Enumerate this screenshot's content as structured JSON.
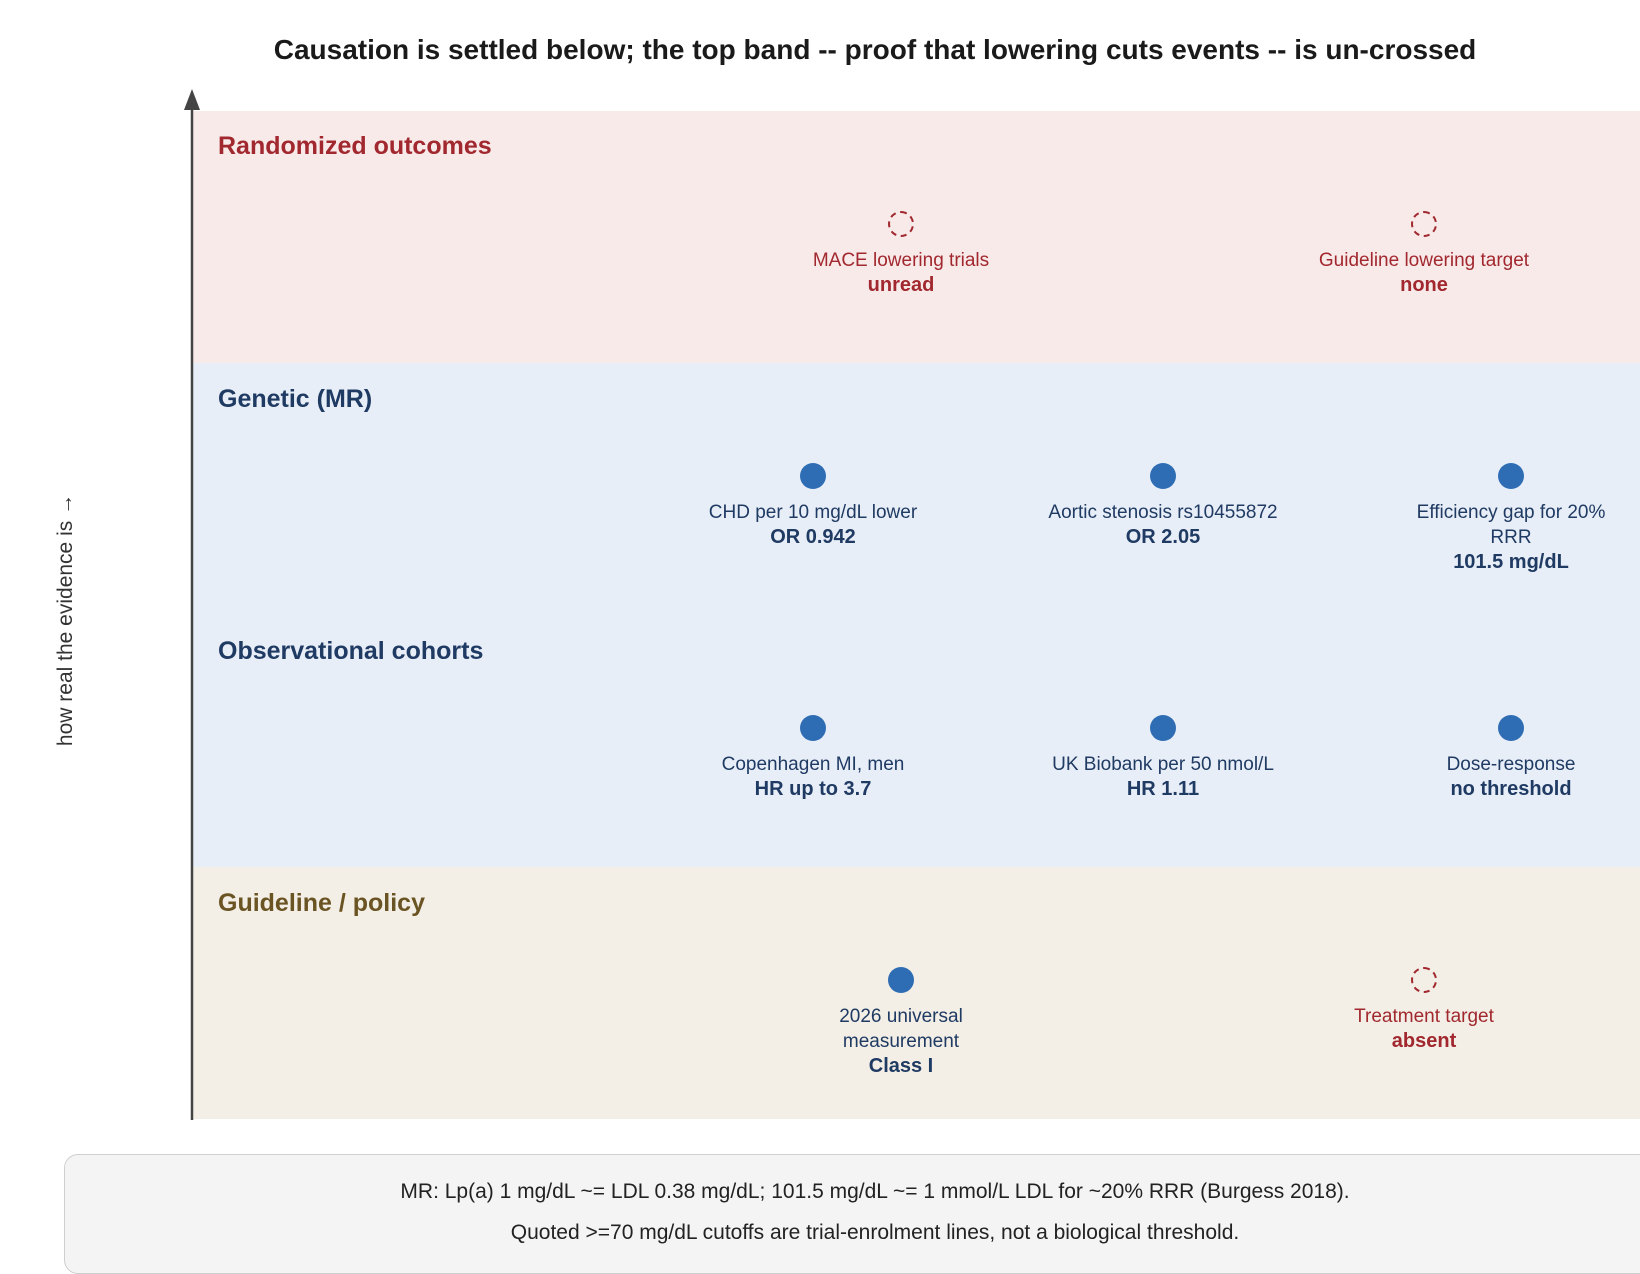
{
  "title": "Causation is settled below; the top band -- proof that lowering cuts events -- is un-crossed",
  "y_axis_label": "how real the evidence is →",
  "colors": {
    "randomized_band": "#f9eaea",
    "evidence_band": "#e8eef7",
    "guideline_band": "#f3efe6",
    "randomized_label": "#a1282e",
    "evidence_label": "#1f3a63",
    "guideline_label": "#6b5423",
    "established_dot": "#2e6db4",
    "missing_dot": "#a1282e"
  },
  "bands": [
    {
      "label": "Randomized outcomes"
    },
    {
      "label": "Genetic (MR)"
    },
    {
      "label": "Observational cohorts"
    },
    {
      "label": "Guideline / policy"
    }
  ],
  "nodes": {
    "mace_trials": {
      "label": "MACE lowering trials",
      "value": "unread",
      "status": "missing"
    },
    "guideline_target": {
      "label": "Guideline lowering target",
      "value": "none",
      "status": "missing"
    },
    "chd_per_10": {
      "label": "CHD per 10 mg/dL lower",
      "value": "OR 0.942",
      "status": "established"
    },
    "aortic_stenosis": {
      "label": "Aortic stenosis rs10455872",
      "value": "OR 2.05",
      "status": "established"
    },
    "efficiency_gap": {
      "label": "Efficiency gap for 20% RRR",
      "value": "101.5 mg/dL",
      "status": "established"
    },
    "copenhagen": {
      "label": "Copenhagen MI, men",
      "value": "HR up to 3.7",
      "status": "established"
    },
    "uk_biobank": {
      "label": "UK Biobank per 50 nmol/L",
      "value": "HR 1.11",
      "status": "established"
    },
    "dose_response": {
      "label": "Dose-response",
      "value": "no threshold",
      "status": "established"
    },
    "universal_measurement": {
      "label": "2026 universal measurement",
      "value": "Class I",
      "status": "established"
    },
    "treatment_target": {
      "label": "Treatment target",
      "value": "absent",
      "status": "missing"
    }
  },
  "note": {
    "line1": "MR: Lp(a) 1 mg/dL ~= LDL 0.38 mg/dL; 101.5 mg/dL ~= 1 mmol/L LDL for ~20% RRR (Burgess 2018).",
    "line2": "Quoted >=70 mg/dL cutoffs are trial-enrolment lines, not a biological threshold."
  }
}
